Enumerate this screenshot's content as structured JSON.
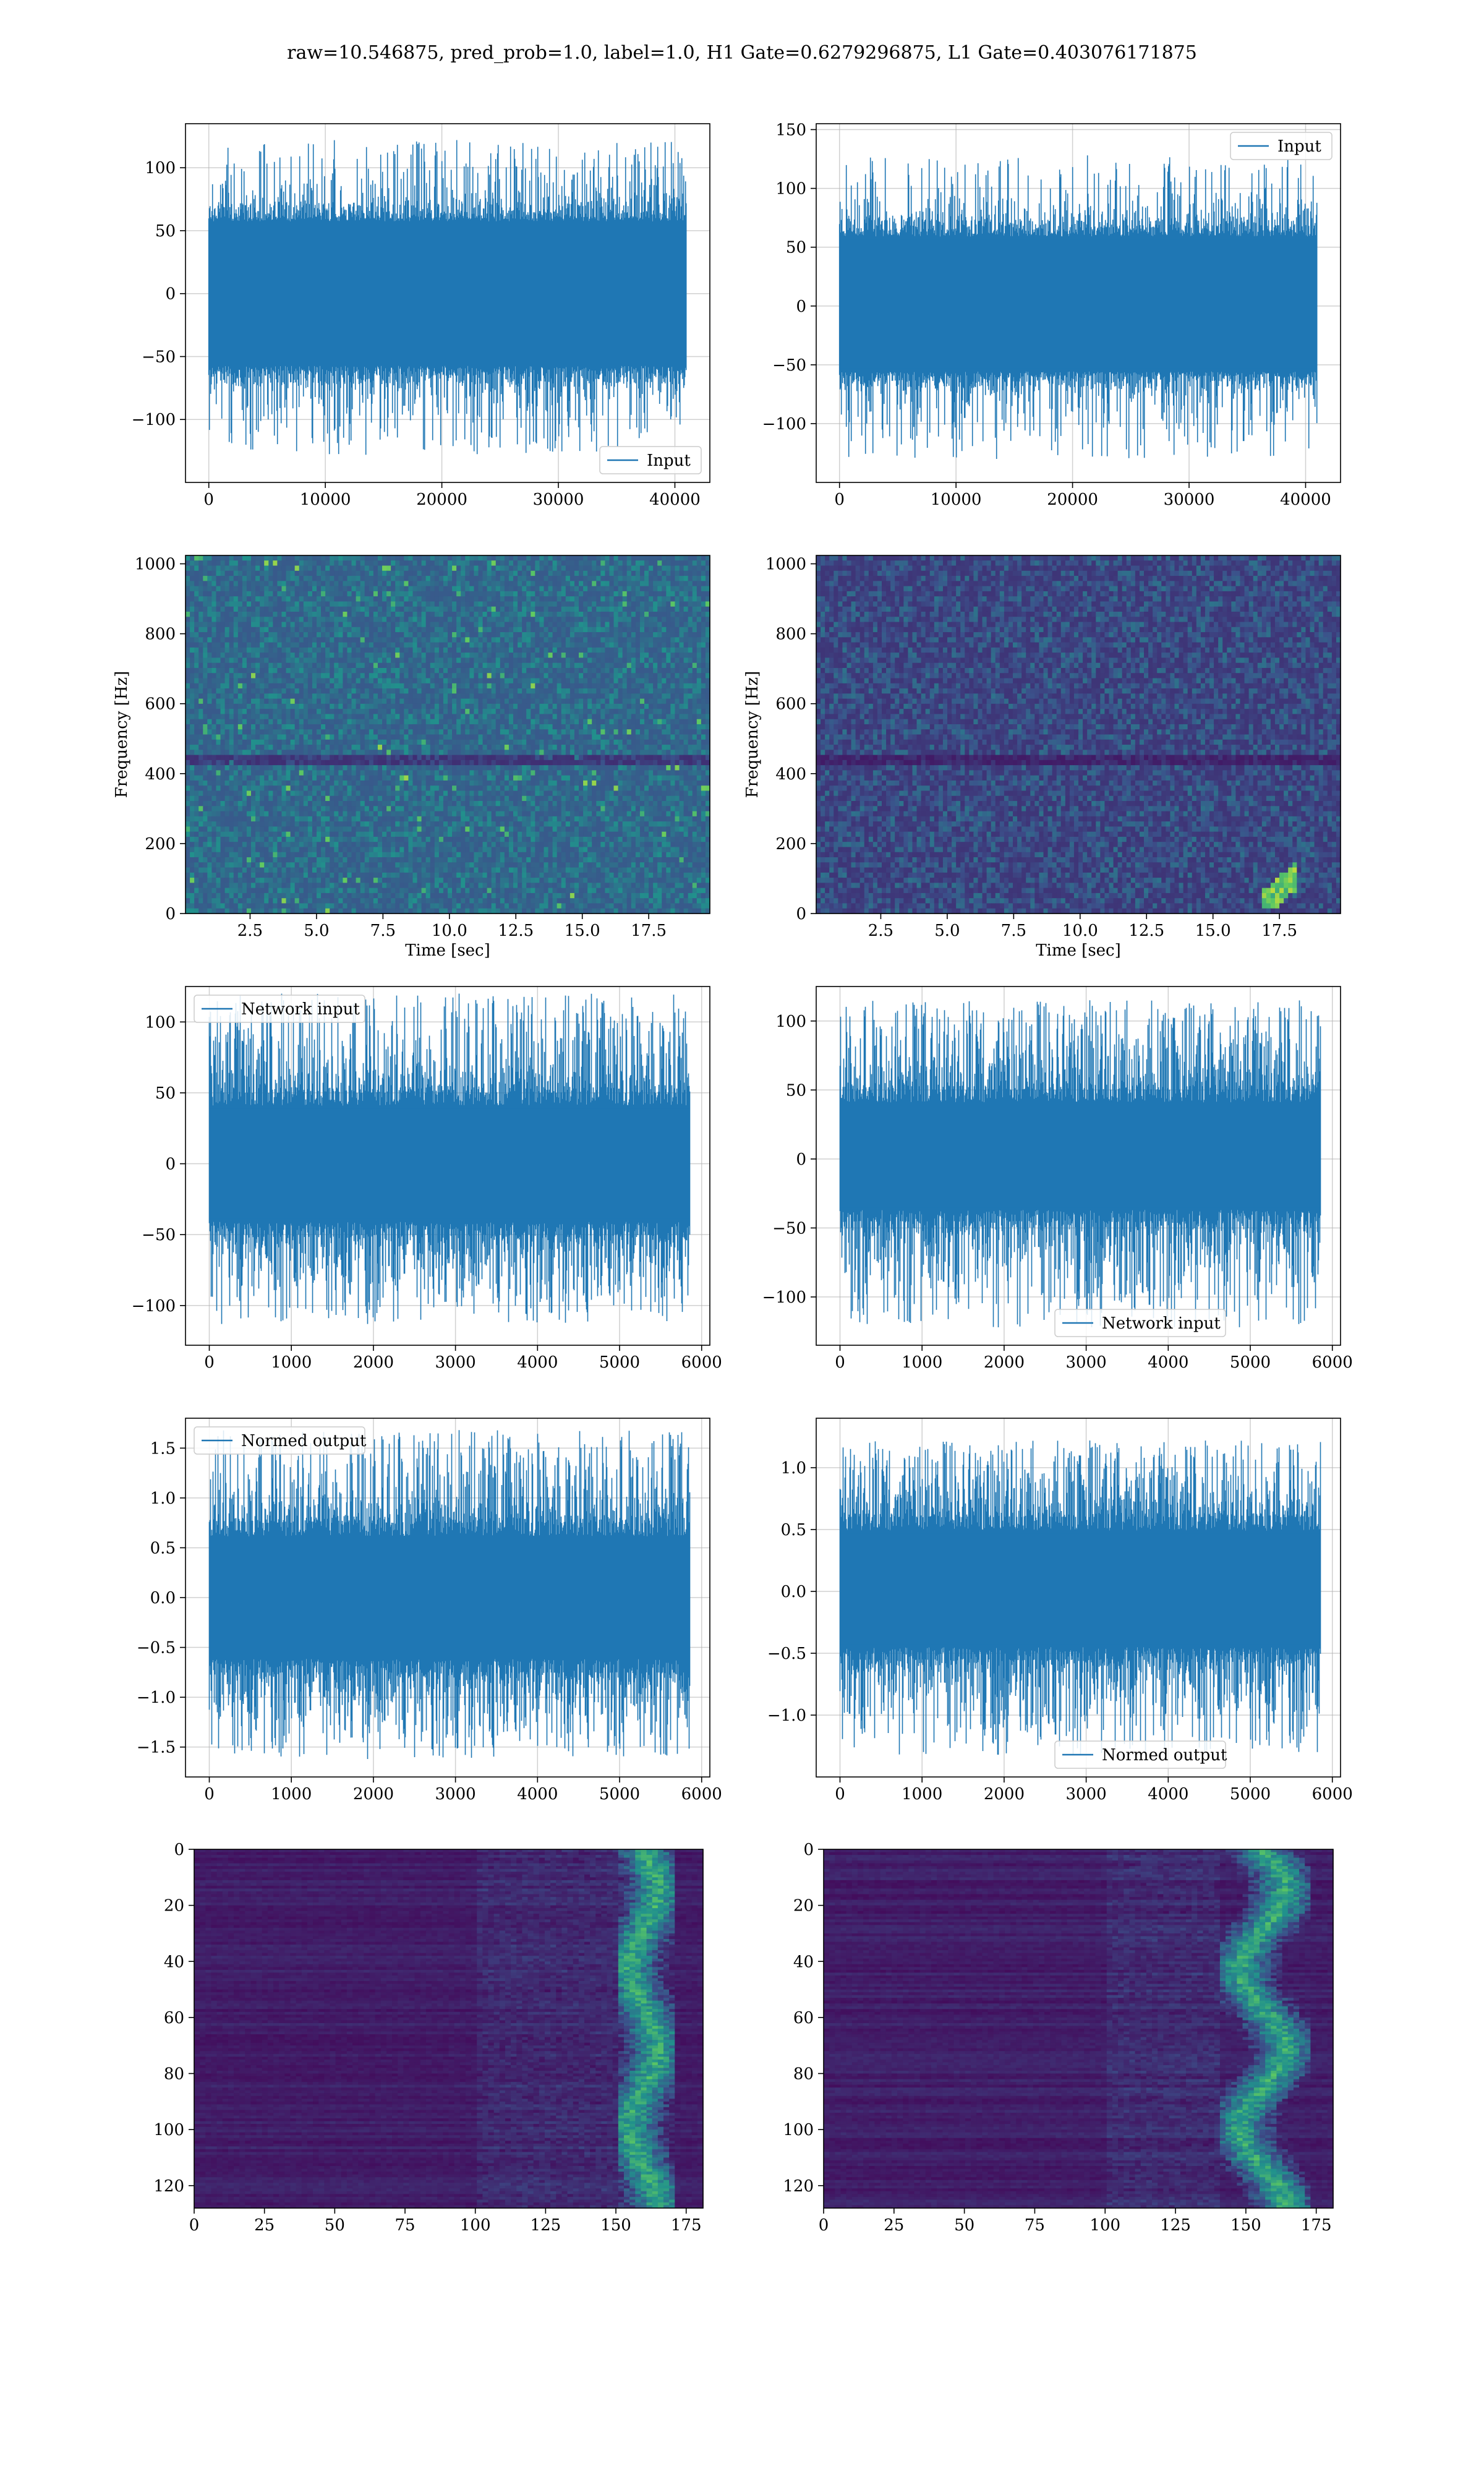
{
  "title": "raw=10.546875, pred_prob=1.0, label=1.0, H1 Gate=0.6279296875, L1 Gate=0.403076171875",
  "colors": {
    "line": "#1f77b4",
    "grid": "#b0b0b0",
    "viridis_dark": "#440154",
    "viridis_mid": "#21918c",
    "viridis_light": "#fde725"
  },
  "chart_data": [
    {
      "id": "h1-input",
      "type": "line",
      "legend": {
        "label": "Input",
        "loc": "lower-right"
      },
      "xlim": [
        -2000,
        43000
      ],
      "ylim": [
        -150,
        135
      ],
      "xticks": [
        0,
        10000,
        20000,
        30000,
        40000
      ],
      "yticks": [
        -100,
        -50,
        0,
        50,
        100
      ],
      "xticklabels": [
        "0",
        "10000",
        "20000",
        "30000",
        "40000"
      ],
      "yticklabels": [
        "−100",
        "−50",
        "0",
        "50",
        "100"
      ],
      "xlabel": "",
      "ylabel": "",
      "series": [
        {
          "name": "Input",
          "n": 40960,
          "band": [
            -70,
            70
          ],
          "peak": [
            -128,
            122
          ],
          "spike_rate": 0.06
        }
      ],
      "grid": true
    },
    {
      "id": "l1-input",
      "type": "line",
      "legend": {
        "label": "Input",
        "loc": "upper-right"
      },
      "xlim": [
        -2000,
        43000
      ],
      "ylim": [
        -150,
        155
      ],
      "xticks": [
        0,
        10000,
        20000,
        30000,
        40000
      ],
      "yticks": [
        -100,
        -50,
        0,
        50,
        100,
        150
      ],
      "xticklabels": [
        "0",
        "10000",
        "20000",
        "30000",
        "40000"
      ],
      "yticklabels": [
        "−100",
        "−50",
        "0",
        "50",
        "100",
        "150"
      ],
      "xlabel": "",
      "ylabel": "",
      "series": [
        {
          "name": "Input",
          "n": 40960,
          "band": [
            -68,
            72
          ],
          "peak": [
            -130,
            128
          ],
          "spike_rate": 0.06
        }
      ],
      "grid": true
    },
    {
      "id": "h1-spectrogram",
      "type": "heatmap",
      "xlim": [
        0.07,
        19.8
      ],
      "ylim": [
        0,
        1024
      ],
      "xticks": [
        2.5,
        5.0,
        7.5,
        10.0,
        12.5,
        15.0,
        17.5
      ],
      "yticks": [
        0,
        200,
        400,
        600,
        800,
        1000
      ],
      "xticklabels": [
        "2.5",
        "5.0",
        "7.5",
        "10.0",
        "12.5",
        "15.0",
        "17.5"
      ],
      "yticklabels": [
        "0",
        "200",
        "400",
        "600",
        "800",
        "1000"
      ],
      "xlabel": "Time [sec]",
      "ylabel": "Frequency [Hz]",
      "intensity": "medium",
      "grid": true
    },
    {
      "id": "l1-spectrogram",
      "type": "heatmap",
      "xlim": [
        0.07,
        19.8
      ],
      "ylim": [
        0,
        1024
      ],
      "xticks": [
        2.5,
        5.0,
        7.5,
        10.0,
        12.5,
        15.0,
        17.5
      ],
      "yticks": [
        0,
        200,
        400,
        600,
        800,
        1000
      ],
      "xticklabels": [
        "2.5",
        "5.0",
        "7.5",
        "10.0",
        "12.5",
        "15.0",
        "17.5"
      ],
      "yticklabels": [
        "0",
        "200",
        "400",
        "600",
        "800",
        "1000"
      ],
      "xlabel": "Time [sec]",
      "ylabel": "Frequency [Hz]",
      "intensity": "low",
      "chirp": {
        "t": [
          16.8,
          18.2
        ],
        "f": [
          20,
          110
        ]
      },
      "grid": true
    },
    {
      "id": "h1-network-input",
      "type": "line",
      "legend": {
        "label": "Network input",
        "loc": "upper-left"
      },
      "xlim": [
        -290,
        6100
      ],
      "ylim": [
        -128,
        125
      ],
      "xticks": [
        0,
        1000,
        2000,
        3000,
        4000,
        5000,
        6000
      ],
      "yticks": [
        -100,
        -50,
        0,
        50,
        100
      ],
      "xticklabels": [
        "0",
        "1000",
        "2000",
        "3000",
        "4000",
        "5000",
        "6000"
      ],
      "yticklabels": [
        "−100",
        "−50",
        "0",
        "50",
        "100"
      ],
      "xlabel": "",
      "ylabel": "",
      "series": [
        {
          "name": "Network input",
          "n": 5856,
          "band": [
            -50,
            50
          ],
          "peak": [
            -113,
            120
          ],
          "spike_rate": 0.12
        }
      ],
      "grid": true
    },
    {
      "id": "l1-network-input",
      "type": "line",
      "legend": {
        "label": "Network input",
        "loc": "lower-center"
      },
      "xlim": [
        -290,
        6100
      ],
      "ylim": [
        -135,
        125
      ],
      "xticks": [
        0,
        1000,
        2000,
        3000,
        4000,
        5000,
        6000
      ],
      "yticks": [
        -100,
        -50,
        0,
        50,
        100
      ],
      "xticklabels": [
        "0",
        "1000",
        "2000",
        "3000",
        "4000",
        "5000",
        "6000"
      ],
      "yticklabels": [
        "−100",
        "−50",
        "0",
        "50",
        "100"
      ],
      "xlabel": "",
      "ylabel": "",
      "series": [
        {
          "name": "Network input",
          "n": 5856,
          "band": [
            -45,
            50
          ],
          "peak": [
            -122,
            115
          ],
          "spike_rate": 0.12
        }
      ],
      "grid": true
    },
    {
      "id": "h1-normed-output",
      "type": "line",
      "legend": {
        "label": "Normed output",
        "loc": "upper-left"
      },
      "xlim": [
        -290,
        6100
      ],
      "ylim": [
        -1.8,
        1.8
      ],
      "xticks": [
        0,
        1000,
        2000,
        3000,
        4000,
        5000,
        6000
      ],
      "yticks": [
        -1.5,
        -1.0,
        -0.5,
        0.0,
        0.5,
        1.0,
        1.5
      ],
      "xticklabels": [
        "0",
        "1000",
        "2000",
        "3000",
        "4000",
        "5000",
        "6000"
      ],
      "yticklabels": [
        "−1.5",
        "−1.0",
        "−0.5",
        "0.0",
        "0.5",
        "1.0",
        "1.5"
      ],
      "xlabel": "",
      "ylabel": "",
      "series": [
        {
          "name": "Normed output",
          "n": 5856,
          "band": [
            -0.75,
            0.75
          ],
          "peak": [
            -1.62,
            1.68
          ],
          "spike_rate": 0.12
        }
      ],
      "grid": true
    },
    {
      "id": "l1-normed-output",
      "type": "line",
      "legend": {
        "label": "Normed output",
        "loc": "lower-center"
      },
      "xlim": [
        -290,
        6100
      ],
      "ylim": [
        -1.5,
        1.4
      ],
      "xticks": [
        0,
        1000,
        2000,
        3000,
        4000,
        5000,
        6000
      ],
      "yticks": [
        -1.0,
        -0.5,
        0.0,
        0.5,
        1.0
      ],
      "xticklabels": [
        "0",
        "1000",
        "2000",
        "3000",
        "4000",
        "5000",
        "6000"
      ],
      "yticklabels": [
        "−1.0",
        "−0.5",
        "0.0",
        "0.5",
        "1.0"
      ],
      "xlabel": "",
      "ylabel": "",
      "series": [
        {
          "name": "Normed output",
          "n": 5856,
          "band": [
            -0.55,
            0.6
          ],
          "peak": [
            -1.32,
            1.22
          ],
          "spike_rate": 0.12
        }
      ],
      "grid": true
    },
    {
      "id": "h1-feature-map",
      "type": "heatmap",
      "xlim": [
        0,
        181
      ],
      "ylim": [
        128,
        0
      ],
      "xticks": [
        0,
        25,
        50,
        75,
        100,
        125,
        150,
        175
      ],
      "yticks": [
        0,
        20,
        40,
        60,
        80,
        100,
        120
      ],
      "xticklabels": [
        "0",
        "25",
        "50",
        "75",
        "100",
        "125",
        "150",
        "175"
      ],
      "yticklabels": [
        "0",
        "20",
        "40",
        "60",
        "80",
        "100",
        "120"
      ],
      "xlabel": "",
      "ylabel": "",
      "hot_columns": [
        150,
        170
      ],
      "grid": true
    },
    {
      "id": "l1-feature-map",
      "type": "heatmap",
      "xlim": [
        0,
        181
      ],
      "ylim": [
        128,
        0
      ],
      "xticks": [
        0,
        25,
        50,
        75,
        100,
        125,
        150,
        175
      ],
      "yticks": [
        0,
        20,
        40,
        60,
        80,
        100,
        120
      ],
      "xticklabels": [
        "0",
        "25",
        "50",
        "75",
        "100",
        "125",
        "150",
        "175"
      ],
      "yticklabels": [
        "0",
        "20",
        "40",
        "60",
        "80",
        "100",
        "120"
      ],
      "xlabel": "",
      "ylabel": "",
      "hot_columns": [
        140,
        172
      ],
      "grid": true
    }
  ]
}
